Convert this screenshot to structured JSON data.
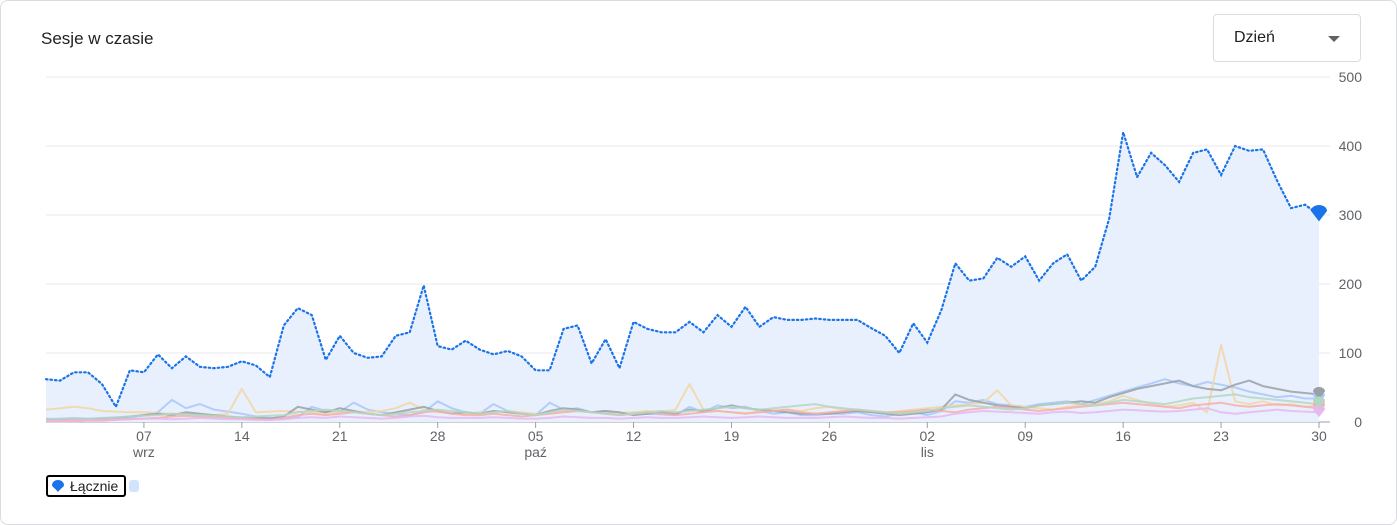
{
  "card": {
    "title": "Sesje w czasie",
    "period_select": {
      "selected": "Dzień"
    }
  },
  "chart_data": {
    "type": "line",
    "title": "Sesje w czasie",
    "ylim": [
      0,
      500
    ],
    "y_ticks": [
      0,
      100,
      200,
      300,
      400,
      500
    ],
    "y_axis_position": "right",
    "grid": true,
    "x_ticks": [
      {
        "day": 7,
        "label": "07",
        "sub": "wrz"
      },
      {
        "day": 14,
        "label": "14",
        "sub": ""
      },
      {
        "day": 21,
        "label": "21",
        "sub": ""
      },
      {
        "day": 28,
        "label": "28",
        "sub": ""
      },
      {
        "day": 35,
        "label": "05",
        "sub": "paź"
      },
      {
        "day": 42,
        "label": "12",
        "sub": ""
      },
      {
        "day": 49,
        "label": "19",
        "sub": ""
      },
      {
        "day": 56,
        "label": "26",
        "sub": ""
      },
      {
        "day": 63,
        "label": "02",
        "sub": "lis"
      },
      {
        "day": 70,
        "label": "09",
        "sub": ""
      },
      {
        "day": 77,
        "label": "16",
        "sub": ""
      },
      {
        "day": 84,
        "label": "23",
        "sub": ""
      },
      {
        "day": 91,
        "label": "30",
        "sub": ""
      }
    ],
    "legend": [
      {
        "name": "Łącznie",
        "color": "#1a73e8"
      }
    ],
    "series": [
      {
        "name": "Łącznie",
        "color": "#1a73e8",
        "style": "dotted",
        "fill": "#e8f0fe",
        "values": [
          62,
          60,
          72,
          72,
          55,
          22,
          75,
          72,
          98,
          78,
          95,
          80,
          78,
          80,
          88,
          82,
          65,
          140,
          165,
          155,
          90,
          125,
          100,
          93,
          95,
          125,
          130,
          198,
          110,
          105,
          118,
          105,
          98,
          103,
          95,
          75,
          75,
          135,
          140,
          85,
          120,
          78,
          145,
          135,
          130,
          130,
          145,
          130,
          155,
          138,
          167,
          138,
          152,
          148,
          148,
          150,
          148,
          148,
          148,
          136,
          125,
          100,
          143,
          115,
          162,
          230,
          205,
          208,
          238,
          225,
          240,
          205,
          230,
          243,
          205,
          225,
          295,
          420,
          355,
          390,
          372,
          348,
          390,
          395,
          358,
          400,
          393,
          395,
          350,
          310,
          315,
          300
        ]
      },
      {
        "name": "",
        "color": "#a8c7fa",
        "style": "solid",
        "values": [
          5,
          4,
          3,
          4,
          2,
          5,
          6,
          10,
          14,
          32,
          20,
          26,
          18,
          15,
          12,
          8,
          6,
          5,
          7,
          22,
          16,
          15,
          28,
          18,
          14,
          12,
          10,
          14,
          30,
          20,
          14,
          12,
          26,
          16,
          12,
          10,
          28,
          18,
          20,
          14,
          16,
          10,
          14,
          12,
          11,
          10,
          22,
          14,
          24,
          20,
          22,
          16,
          12,
          14,
          10,
          10,
          12,
          12,
          14,
          10,
          8,
          12,
          14,
          10,
          16,
          30,
          28,
          32,
          26,
          24,
          22,
          26,
          28,
          30,
          26,
          32,
          38,
          44,
          50,
          56,
          62,
          56,
          52,
          58,
          54,
          50,
          44,
          40,
          36,
          38,
          34,
          34
        ]
      },
      {
        "name": "",
        "color": "#f2d6a2",
        "style": "solid",
        "values": [
          18,
          20,
          22,
          20,
          16,
          15,
          14,
          14,
          13,
          12,
          11,
          10,
          10,
          12,
          48,
          14,
          15,
          16,
          15,
          14,
          13,
          14,
          15,
          14,
          16,
          20,
          28,
          18,
          14,
          13,
          12,
          14,
          15,
          16,
          14,
          12,
          13,
          15,
          16,
          14,
          12,
          13,
          14,
          16,
          14,
          18,
          55,
          18,
          16,
          14,
          13,
          15,
          17,
          18,
          16,
          20,
          22,
          18,
          16,
          14,
          13,
          16,
          18,
          20,
          22,
          24,
          26,
          28,
          46,
          24,
          22,
          20,
          18,
          22,
          24,
          26,
          30,
          38,
          32,
          26,
          22,
          24,
          28,
          14,
          112,
          30,
          26,
          30,
          24,
          26,
          22,
          24
        ]
      },
      {
        "name": "",
        "color": "#9aa0a6",
        "style": "solid",
        "values": [
          3,
          3,
          4,
          4,
          5,
          6,
          8,
          10,
          12,
          10,
          14,
          12,
          10,
          8,
          6,
          6,
          5,
          8,
          22,
          18,
          14,
          20,
          16,
          12,
          10,
          14,
          18,
          22,
          16,
          12,
          14,
          12,
          16,
          14,
          12,
          10,
          16,
          20,
          18,
          14,
          16,
          14,
          10,
          12,
          14,
          12,
          18,
          16,
          20,
          24,
          20,
          18,
          16,
          14,
          12,
          12,
          12,
          14,
          16,
          14,
          12,
          10,
          12,
          14,
          18,
          40,
          32,
          28,
          24,
          22,
          20,
          24,
          26,
          28,
          30,
          28,
          36,
          42,
          48,
          52,
          56,
          60,
          52,
          48,
          46,
          54,
          60,
          52,
          48,
          44,
          42,
          40
        ]
      },
      {
        "name": "",
        "color": "#f6aea9",
        "style": "solid",
        "values": [
          1,
          1,
          1,
          2,
          2,
          3,
          4,
          5,
          6,
          8,
          9,
          8,
          7,
          6,
          5,
          4,
          3,
          6,
          10,
          12,
          10,
          12,
          14,
          12,
          10,
          8,
          10,
          14,
          16,
          12,
          10,
          10,
          12,
          10,
          8,
          10,
          12,
          14,
          16,
          14,
          12,
          10,
          12,
          14,
          12,
          10,
          12,
          14,
          16,
          14,
          12,
          14,
          16,
          18,
          14,
          12,
          14,
          16,
          18,
          16,
          14,
          14,
          16,
          18,
          16,
          14,
          18,
          20,
          22,
          20,
          18,
          16,
          18,
          20,
          22,
          24,
          26,
          28,
          26,
          24,
          22,
          20,
          24,
          26,
          28,
          24,
          22,
          24,
          26,
          24,
          22,
          20
        ]
      },
      {
        "name": "",
        "color": "#e7b7f0",
        "style": "solid",
        "values": [
          2,
          2,
          3,
          3,
          3,
          4,
          4,
          5,
          5,
          4,
          5,
          6,
          5,
          4,
          4,
          3,
          3,
          4,
          6,
          7,
          6,
          8,
          7,
          6,
          5,
          6,
          8,
          9,
          7,
          6,
          6,
          6,
          7,
          6,
          5,
          5,
          6,
          8,
          7,
          6,
          6,
          5,
          6,
          7,
          6,
          6,
          7,
          8,
          7,
          6,
          7,
          8,
          7,
          6,
          6,
          6,
          7,
          8,
          7,
          6,
          6,
          5,
          6,
          7,
          8,
          12,
          14,
          16,
          15,
          14,
          13,
          12,
          14,
          15,
          13,
          14,
          16,
          18,
          17,
          16,
          15,
          16,
          18,
          20,
          14,
          12,
          14,
          16,
          18,
          16,
          15,
          14
        ]
      },
      {
        "name": "",
        "color": "#b4d6c4",
        "style": "solid",
        "values": [
          4,
          5,
          6,
          5,
          6,
          7,
          8,
          9,
          10,
          12,
          11,
          10,
          9,
          8,
          7,
          8,
          9,
          10,
          14,
          16,
          18,
          16,
          14,
          12,
          10,
          12,
          14,
          16,
          18,
          16,
          14,
          12,
          14,
          16,
          12,
          10,
          14,
          18,
          16,
          14,
          12,
          10,
          12,
          14,
          16,
          14,
          16,
          18,
          20,
          22,
          20,
          18,
          20,
          22,
          24,
          26,
          22,
          20,
          18,
          16,
          14,
          12,
          14,
          16,
          20,
          22,
          24,
          22,
          20,
          18,
          20,
          24,
          26,
          28,
          26,
          24,
          28,
          32,
          30,
          28,
          26,
          30,
          34,
          36,
          38,
          40,
          36,
          34,
          32,
          30,
          28,
          26
        ]
      }
    ]
  }
}
